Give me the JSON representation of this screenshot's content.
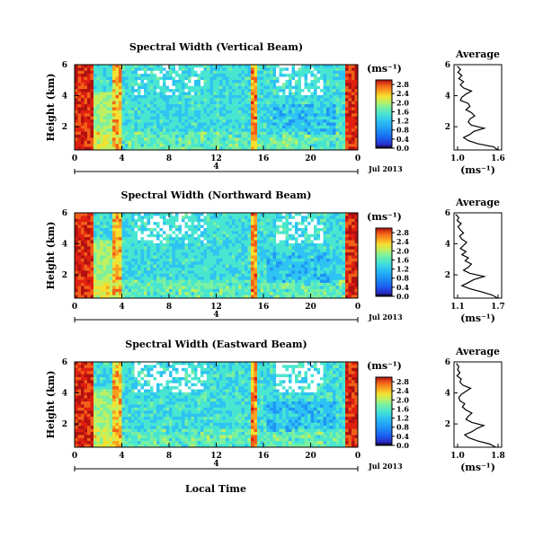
{
  "figure": {
    "xlabel": "Local Time",
    "colormap": [
      "#ffffff",
      "#000000",
      "#2a2ac8",
      "#1a5ff0",
      "#1f95f5",
      "#2ec3f2",
      "#48e6d0",
      "#7af0a0",
      "#c0f060",
      "#f5e030",
      "#f9a020",
      "#f26018",
      "#e02010",
      "#b01010"
    ]
  },
  "chart_data": [
    {
      "type": "heatmap",
      "title": "Spectral Width (Vertical Beam)",
      "ylabel": "Height (km)",
      "xlabel": "",
      "x_ticks": [
        "0",
        "4",
        "8",
        "12",
        "16",
        "20",
        "0"
      ],
      "x_range": [
        0,
        24
      ],
      "y_ticks": [
        "2",
        "4",
        "6"
      ],
      "y_range": [
        0.5,
        6
      ],
      "date_label": "Jul 2013",
      "date_axis_tick": "4",
      "colorbar": {
        "unit": "(ms⁻¹)",
        "ticks": [
          "0.0",
          "0.4",
          "0.8",
          "1.2",
          "1.6",
          "2.0",
          "2.4",
          "2.8"
        ],
        "range": [
          0,
          3.0
        ]
      },
      "average_profile": {
        "title": "Average",
        "xlabel": "(ms⁻¹)",
        "x_ticks": [
          "1.0",
          "1.6"
        ],
        "x_range": [
          1.0,
          1.6
        ],
        "y_ticks": [
          "2",
          "4",
          "6"
        ],
        "y_range": [
          0.5,
          6
        ],
        "heights": [
          0.5,
          0.7,
          0.9,
          1.1,
          1.3,
          1.5,
          1.7,
          1.9,
          2.1,
          2.3,
          2.5,
          2.7,
          2.9,
          3.1,
          3.3,
          3.5,
          3.7,
          3.9,
          4.1,
          4.3,
          4.5,
          4.7,
          4.9,
          5.1,
          5.3,
          5.5,
          5.7,
          5.9
        ],
        "values": [
          1.55,
          1.5,
          1.3,
          1.18,
          1.12,
          1.2,
          1.25,
          1.38,
          1.22,
          1.18,
          1.2,
          1.26,
          1.22,
          1.15,
          1.2,
          1.18,
          1.08,
          1.1,
          1.15,
          1.22,
          1.12,
          1.08,
          1.12,
          1.06,
          1.1,
          1.05,
          1.08,
          1.04
        ]
      }
    },
    {
      "type": "heatmap",
      "title": "Spectral Width (Northward Beam)",
      "ylabel": "Height (km)",
      "xlabel": "",
      "x_ticks": [
        "0",
        "4",
        "8",
        "12",
        "16",
        "20",
        "0"
      ],
      "x_range": [
        0,
        24
      ],
      "y_ticks": [
        "2",
        "4",
        "6"
      ],
      "y_range": [
        0.5,
        6
      ],
      "date_label": "Jul 2013",
      "date_axis_tick": "4",
      "colorbar": {
        "unit": "(ms⁻¹)",
        "ticks": [
          "0.0",
          "0.4",
          "0.8",
          "1.2",
          "1.6",
          "2.0",
          "2.4",
          "2.8"
        ],
        "range": [
          0,
          3.0
        ]
      },
      "average_profile": {
        "title": "Average",
        "xlabel": "(ms⁻¹)",
        "x_ticks": [
          "1.1",
          "1.7"
        ],
        "x_range": [
          1.1,
          1.7
        ],
        "y_ticks": [
          "2",
          "4",
          "6"
        ],
        "y_range": [
          0.5,
          6
        ],
        "heights": [
          0.5,
          0.7,
          0.9,
          1.1,
          1.3,
          1.5,
          1.7,
          1.9,
          2.1,
          2.3,
          2.5,
          2.7,
          2.9,
          3.1,
          3.3,
          3.5,
          3.7,
          3.9,
          4.1,
          4.3,
          4.5,
          4.7,
          4.9,
          5.1,
          5.3,
          5.5,
          5.7,
          5.9
        ],
        "values": [
          1.65,
          1.58,
          1.45,
          1.3,
          1.2,
          1.28,
          1.35,
          1.48,
          1.3,
          1.22,
          1.28,
          1.32,
          1.24,
          1.28,
          1.2,
          1.25,
          1.18,
          1.22,
          1.26,
          1.2,
          1.17,
          1.22,
          1.18,
          1.15,
          1.19,
          1.14,
          1.16,
          1.12
        ]
      }
    },
    {
      "type": "heatmap",
      "title": "Spectral Width (Eastward Beam)",
      "ylabel": "Height (km)",
      "xlabel": "Local Time",
      "x_ticks": [
        "0",
        "4",
        "8",
        "12",
        "16",
        "20",
        "0"
      ],
      "x_range": [
        0,
        24
      ],
      "y_ticks": [
        "2",
        "4",
        "6"
      ],
      "y_range": [
        0.5,
        6
      ],
      "date_label": "Jul 2013",
      "date_axis_tick": "4",
      "colorbar": {
        "unit": "(ms⁻¹)",
        "ticks": [
          "0.0",
          "0.4",
          "0.8",
          "1.2",
          "1.6",
          "2.0",
          "2.4",
          "2.8"
        ],
        "range": [
          0,
          3.0
        ]
      },
      "average_profile": {
        "title": "Average",
        "xlabel": "(ms⁻¹)",
        "x_ticks": [
          "1.0",
          "1.8"
        ],
        "x_range": [
          1.0,
          1.8
        ],
        "y_ticks": [
          "2",
          "4",
          "6"
        ],
        "y_range": [
          0.5,
          6
        ],
        "heights": [
          0.5,
          0.7,
          0.9,
          1.1,
          1.3,
          1.5,
          1.7,
          1.9,
          2.1,
          2.3,
          2.5,
          2.7,
          2.9,
          3.1,
          3.3,
          3.5,
          3.7,
          3.9,
          4.1,
          4.3,
          4.5,
          4.7,
          4.9,
          5.1,
          5.3,
          5.5,
          5.7,
          5.9
        ],
        "values": [
          1.7,
          1.6,
          1.4,
          1.25,
          1.18,
          1.3,
          1.38,
          1.5,
          1.3,
          1.2,
          1.24,
          1.3,
          1.2,
          1.14,
          1.18,
          1.1,
          1.08,
          1.12,
          1.2,
          1.28,
          1.15,
          1.1,
          1.12,
          1.05,
          1.1,
          1.06,
          1.08,
          1.04
        ]
      }
    }
  ]
}
